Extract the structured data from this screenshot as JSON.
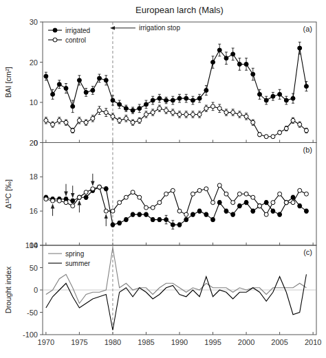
{
  "chart_data": [
    {
      "type": "line",
      "title": "European larch (Mals)",
      "y_label": "BAI [cm²]",
      "x": [
        1970,
        1971,
        1972,
        1973,
        1974,
        1975,
        1976,
        1977,
        1978,
        1979,
        1980,
        1981,
        1982,
        1983,
        1984,
        1985,
        1986,
        1987,
        1988,
        1989,
        1990,
        1991,
        1992,
        1993,
        1994,
        1995,
        1996,
        1997,
        1998,
        1999,
        2000,
        2001,
        2002,
        2003,
        2004,
        2005,
        2006,
        2007,
        2008,
        2009
      ],
      "series": [
        {
          "name": "irrigated",
          "color": "black",
          "marker": "circle",
          "values": [
            16.5,
            12.0,
            14.5,
            13.5,
            9.0,
            15.5,
            12.5,
            13.0,
            16.0,
            15.5,
            10.5,
            9.5,
            8.5,
            8.0,
            8.5,
            9.5,
            10.5,
            11.0,
            10.5,
            10.5,
            11.0,
            11.0,
            10.5,
            11.0,
            13.0,
            20.0,
            23.0,
            21.0,
            22.0,
            19.5,
            19.5,
            17.0,
            12.0,
            10.5,
            11.5,
            12.0,
            10.5,
            11.0,
            23.5,
            14.0
          ],
          "error": [
            1.0,
            1.2,
            1.0,
            1.2,
            1.5,
            1.2,
            1.0,
            1.0,
            1.0,
            1.2,
            1.2,
            1.0,
            0.8,
            0.8,
            1.0,
            1.0,
            1.0,
            1.0,
            0.8,
            1.0,
            1.0,
            1.0,
            1.0,
            1.0,
            1.2,
            1.5,
            1.5,
            1.5,
            1.5,
            1.5,
            1.5,
            1.5,
            1.2,
            1.0,
            1.0,
            1.2,
            1.0,
            1.2,
            1.5,
            1.2
          ]
        },
        {
          "name": "control",
          "color": "black",
          "marker": "open-circle",
          "values": [
            5.5,
            4.5,
            5.5,
            5.0,
            3.0,
            5.5,
            5.0,
            6.0,
            8.0,
            7.5,
            6.5,
            5.5,
            6.0,
            5.0,
            5.5,
            7.0,
            7.5,
            8.5,
            8.0,
            7.5,
            7.0,
            7.0,
            7.0,
            7.0,
            8.5,
            9.0,
            8.5,
            7.5,
            7.5,
            7.0,
            6.5,
            5.0,
            2.0,
            1.5,
            1.5,
            2.5,
            3.5,
            5.5,
            4.5,
            3.0
          ],
          "error": [
            0.8,
            0.7,
            0.8,
            0.7,
            0.6,
            0.8,
            0.7,
            0.8,
            1.0,
            1.0,
            0.8,
            0.7,
            0.8,
            0.7,
            0.7,
            0.8,
            0.8,
            0.8,
            0.8,
            0.8,
            0.8,
            0.8,
            0.8,
            0.8,
            0.8,
            1.0,
            1.0,
            0.8,
            0.8,
            0.8,
            0.8,
            0.7,
            0.5,
            0.4,
            0.4,
            0.5,
            0.6,
            0.7,
            0.7,
            0.6
          ]
        }
      ],
      "xlim": [
        1969.5,
        2010.5
      ],
      "xticks": [
        1970,
        1975,
        1980,
        1985,
        1990,
        1995,
        2000,
        2005,
        2010
      ],
      "ylim": [
        0,
        30
      ],
      "yticks": [
        0,
        10,
        20,
        30
      ],
      "tick_labels": "y",
      "legend": "upper-left",
      "annotations": [
        {
          "type": "vline",
          "x": 1980
        },
        {
          "type": "arrow",
          "text": "irrigation stop",
          "x": 1980,
          "y": 28.5
        },
        {
          "type": "label",
          "text": "(a)"
        }
      ]
    },
    {
      "type": "line",
      "y_label": "Δ¹³C [‰]",
      "x": [
        1970,
        1971,
        1972,
        1973,
        1974,
        1975,
        1976,
        1977,
        1978,
        1979,
        1980,
        1981,
        1982,
        1983,
        1984,
        1985,
        1986,
        1987,
        1988,
        1989,
        1990,
        1991,
        1992,
        1993,
        1994,
        1995,
        1996,
        1997,
        1998,
        1999,
        2000,
        2001,
        2002,
        2003,
        2004,
        2005,
        2006,
        2007,
        2008,
        2009
      ],
      "series": [
        {
          "color": "black",
          "marker": "circle",
          "values": [
            16.8,
            16.7,
            16.7,
            16.7,
            16.6,
            16.8,
            16.8,
            17.2,
            17.4,
            17.3,
            15.2,
            15.3,
            15.5,
            15.8,
            15.8,
            15.8,
            15.5,
            15.5,
            15.5,
            15.2,
            15.2,
            15.5,
            15.8,
            16.0,
            15.8,
            15.5,
            16.5,
            16.0,
            15.8,
            16.3,
            16.5,
            16.0,
            16.3,
            16.5,
            16.0,
            15.8,
            16.5,
            16.8,
            16.3,
            16.0
          ],
          "error": [
            0.12,
            0.12,
            0.12,
            0.12,
            0.12,
            0.12,
            0.12,
            0.12,
            0.12,
            0.12,
            0.12,
            0.12,
            0.12,
            0.12,
            0.12,
            0.12,
            0.12,
            0.12,
            0.25,
            0.25,
            0.12,
            0.12,
            0.12,
            0.12,
            0.12,
            0.12,
            0.12,
            0.12,
            0.12,
            0.12,
            0.12,
            0.12,
            0.12,
            0.12,
            0.12,
            0.12,
            0.12,
            0.12,
            0.12,
            0.12
          ]
        },
        {
          "color": "black",
          "marker": "open-circle",
          "values": [
            16.7,
            16.6,
            16.6,
            16.5,
            16.3,
            16.8,
            17.1,
            17.3,
            17.4,
            16.0,
            16.0,
            16.5,
            16.8,
            17.1,
            16.8,
            16.2,
            16.2,
            16.5,
            17.0,
            17.2,
            16.0,
            15.8,
            17.0,
            17.2,
            17.3,
            16.5,
            17.5,
            17.0,
            16.5,
            17.0,
            17.0,
            16.8,
            16.3,
            15.8,
            16.5,
            17.0,
            16.5,
            16.5,
            17.2,
            17.0
          ]
        }
      ],
      "xlim": [
        1969.5,
        2010.5
      ],
      "xticks": [
        1970,
        1975,
        1980,
        1985,
        1990,
        1995,
        2000,
        2005,
        2010
      ],
      "ylim": [
        14,
        20
      ],
      "yticks": [
        14,
        16,
        18,
        20
      ],
      "tick_labels": "y",
      "annotations": [
        {
          "type": "vline",
          "x": 1980
        },
        {
          "type": "arrow-down",
          "x": 1973
        },
        {
          "type": "arrow-down",
          "x": 1974
        },
        {
          "type": "arrow-down",
          "x": 1977
        },
        {
          "type": "arrow-up",
          "x": 1971
        },
        {
          "type": "arrow-up",
          "x": 1975
        },
        {
          "type": "arrow-up",
          "x": 1979
        },
        {
          "type": "label",
          "text": "(b)"
        }
      ]
    },
    {
      "type": "line",
      "y_label": "Drought index",
      "x": [
        1970,
        1971,
        1972,
        1973,
        1974,
        1975,
        1976,
        1977,
        1978,
        1979,
        1980,
        1981,
        1982,
        1983,
        1984,
        1985,
        1986,
        1987,
        1988,
        1989,
        1990,
        1991,
        1992,
        1993,
        1994,
        1995,
        1996,
        1997,
        1998,
        1999,
        2000,
        2001,
        2002,
        2003,
        2004,
        2005,
        2006,
        2007,
        2008,
        2009
      ],
      "series": [
        {
          "name": "spring",
          "color": "gray",
          "line_style": "solid",
          "values": [
            -10,
            0,
            25,
            35,
            5,
            -30,
            -10,
            -5,
            -5,
            0,
            95,
            5,
            15,
            0,
            5,
            5,
            -10,
            5,
            15,
            15,
            5,
            -5,
            5,
            0,
            15,
            5,
            5,
            5,
            -5,
            5,
            0,
            5,
            5,
            -10,
            5,
            5,
            5,
            5,
            15,
            5
          ]
        },
        {
          "name": "summer",
          "color": "black",
          "line_style": "solid",
          "values": [
            -40,
            -15,
            0,
            15,
            -15,
            -40,
            -30,
            -20,
            -15,
            -10,
            -90,
            -5,
            5,
            -15,
            5,
            -5,
            -20,
            -10,
            5,
            10,
            -10,
            -15,
            0,
            -15,
            30,
            -15,
            0,
            -5,
            -20,
            -5,
            -5,
            5,
            -5,
            -25,
            -5,
            30,
            -5,
            -55,
            -50,
            35
          ]
        }
      ],
      "xlim": [
        1969.5,
        2010.5
      ],
      "xticks": [
        1970,
        1975,
        1980,
        1985,
        1990,
        1995,
        2000,
        2005,
        2010
      ],
      "ylim": [
        -100,
        100
      ],
      "yticks": [
        -100,
        -50,
        0,
        50,
        100
      ],
      "legend": "upper-left",
      "annotations": [
        {
          "type": "vline",
          "x": 1980
        },
        {
          "type": "hline",
          "y": 0
        },
        {
          "type": "label",
          "text": "(c)"
        }
      ]
    }
  ]
}
